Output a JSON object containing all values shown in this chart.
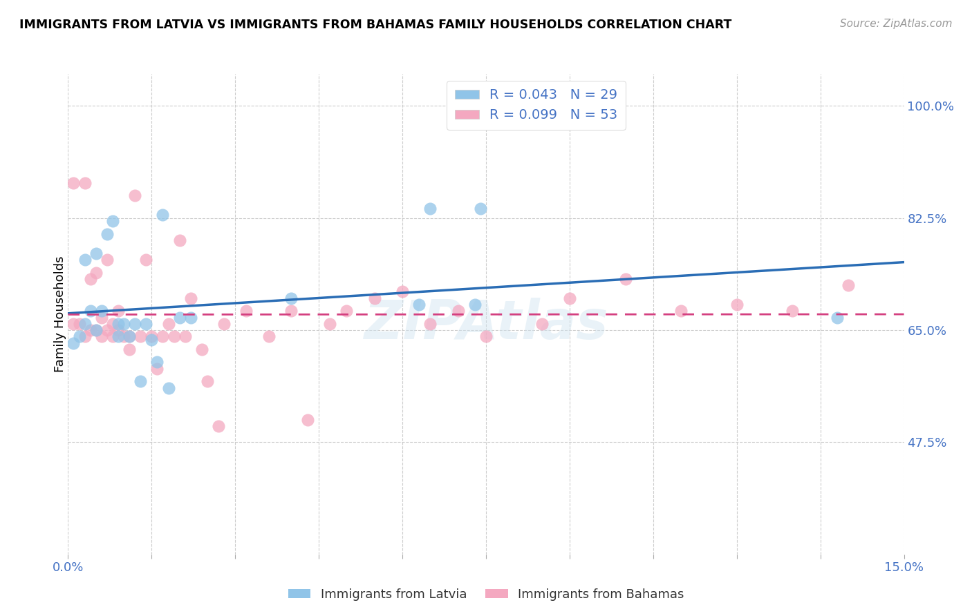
{
  "title": "IMMIGRANTS FROM LATVIA VS IMMIGRANTS FROM BAHAMAS FAMILY HOUSEHOLDS CORRELATION CHART",
  "source": "Source: ZipAtlas.com",
  "ylabel": "Family Households",
  "xlim": [
    0.0,
    0.15
  ],
  "ylim": [
    0.3,
    1.05
  ],
  "yticks": [
    0.475,
    0.65,
    0.825,
    1.0
  ],
  "yticklabels": [
    "47.5%",
    "65.0%",
    "82.5%",
    "100.0%"
  ],
  "legend_label1": "R = 0.043   N = 29",
  "legend_label2": "R = 0.099   N = 53",
  "legend_bottom_label1": "Immigrants from Latvia",
  "legend_bottom_label2": "Immigrants from Bahamas",
  "color_blue": "#90c4e8",
  "color_pink": "#f4a8c0",
  "color_blue_line": "#2a6db5",
  "color_pink_line": "#d44080",
  "watermark": "ZIPAtlas",
  "latvia_x": [
    0.001,
    0.002,
    0.003,
    0.004,
    0.005,
    0.006,
    0.007,
    0.008,
    0.009,
    0.01,
    0.011,
    0.012,
    0.013,
    0.015,
    0.016,
    0.017,
    0.018,
    0.02,
    0.022,
    0.04,
    0.063,
    0.065,
    0.073,
    0.074,
    0.138,
    0.003,
    0.005,
    0.009,
    0.014
  ],
  "latvia_y": [
    0.63,
    0.64,
    0.66,
    0.68,
    0.65,
    0.68,
    0.8,
    0.82,
    0.64,
    0.66,
    0.64,
    0.66,
    0.57,
    0.635,
    0.6,
    0.83,
    0.56,
    0.67,
    0.67,
    0.7,
    0.69,
    0.84,
    0.69,
    0.84,
    0.67,
    0.76,
    0.77,
    0.66,
    0.66
  ],
  "bahamas_x": [
    0.001,
    0.001,
    0.002,
    0.003,
    0.003,
    0.004,
    0.004,
    0.005,
    0.005,
    0.006,
    0.006,
    0.007,
    0.007,
    0.008,
    0.008,
    0.009,
    0.009,
    0.01,
    0.011,
    0.011,
    0.012,
    0.013,
    0.014,
    0.015,
    0.016,
    0.017,
    0.018,
    0.019,
    0.02,
    0.021,
    0.022,
    0.024,
    0.025,
    0.027,
    0.028,
    0.032,
    0.036,
    0.04,
    0.043,
    0.047,
    0.05,
    0.055,
    0.06,
    0.065,
    0.07,
    0.075,
    0.085,
    0.09,
    0.1,
    0.11,
    0.12,
    0.13,
    0.14
  ],
  "bahamas_y": [
    0.66,
    0.88,
    0.66,
    0.88,
    0.64,
    0.65,
    0.73,
    0.65,
    0.74,
    0.64,
    0.67,
    0.65,
    0.76,
    0.64,
    0.66,
    0.65,
    0.68,
    0.64,
    0.62,
    0.64,
    0.86,
    0.64,
    0.76,
    0.64,
    0.59,
    0.64,
    0.66,
    0.64,
    0.79,
    0.64,
    0.7,
    0.62,
    0.57,
    0.5,
    0.66,
    0.68,
    0.64,
    0.68,
    0.51,
    0.66,
    0.68,
    0.7,
    0.71,
    0.66,
    0.68,
    0.64,
    0.66,
    0.7,
    0.73,
    0.68,
    0.69,
    0.68,
    0.72
  ]
}
